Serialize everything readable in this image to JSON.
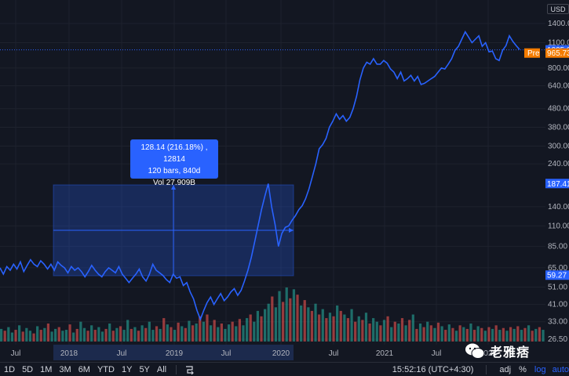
{
  "chart_data": {
    "type": "line",
    "scale": "log",
    "currency": "USD",
    "y_axis_ticks": [
      "1400.00",
      "1100.00",
      "800.00",
      "640.00",
      "480.00",
      "380.00",
      "300.00",
      "240.00",
      "187.41",
      "140.00",
      "110.00",
      "85.00",
      "65.00",
      "59.27",
      "51.00",
      "41.00",
      "33.00",
      "26.50"
    ],
    "y_axis_tick_values": [
      1400,
      1100,
      800,
      640,
      480,
      380,
      300,
      240,
      187.41,
      140,
      110,
      85,
      65,
      59.27,
      51,
      41,
      33,
      26.5
    ],
    "x_axis_labels": [
      "Jul",
      "2018",
      "Jul",
      "2019",
      "Jul",
      "2020",
      "Jul",
      "2021",
      "Jul",
      "2022"
    ],
    "price_tags": [
      {
        "value": 1005.05,
        "label": "1005.05",
        "color": "#2962ff"
      },
      {
        "value": 965.73,
        "label": "965.73",
        "prefix": "Pre",
        "color": "#f57c00"
      },
      {
        "value": 187.41,
        "label": "187.41",
        "color": "#2962ff"
      },
      {
        "value": 59.27,
        "label": "59.27",
        "color": "#2962ff"
      }
    ],
    "series": [
      {
        "color": "#2962ff",
        "values": [
          65,
          60,
          66,
          63,
          68,
          64,
          70,
          62,
          67,
          72,
          68,
          66,
          71,
          68,
          64,
          68,
          63,
          70,
          67,
          65,
          61,
          66,
          63,
          65,
          62,
          58,
          62,
          67,
          63,
          60,
          58,
          62,
          65,
          63,
          61,
          66,
          60,
          57,
          54,
          57,
          60,
          64,
          58,
          55,
          60,
          68,
          63,
          61,
          59,
          56,
          54,
          60,
          57,
          58,
          52,
          54,
          48,
          44,
          38,
          34,
          38,
          42,
          45,
          41,
          44,
          47,
          43,
          45,
          48,
          50,
          46,
          49,
          55,
          63,
          74,
          90,
          110,
          135,
          160,
          187,
          140,
          112,
          85,
          100,
          108,
          110,
          118,
          125,
          135,
          142,
          155,
          175,
          205,
          240,
          290,
          305,
          330,
          380,
          410,
          450,
          420,
          440,
          410,
          430,
          480,
          560,
          690,
          800,
          860,
          840,
          900,
          840,
          840,
          880,
          850,
          790,
          760,
          700,
          760,
          680,
          700,
          730,
          680,
          720,
          650,
          660,
          680,
          700,
          720,
          760,
          800,
          790,
          840,
          900,
          1000,
          1050,
          1150,
          1260,
          1180,
          1100,
          1150,
          1200,
          1050,
          1100,
          980,
          990,
          900,
          880,
          1000,
          1060,
          1200,
          1120,
          1060,
          1010
        ]
      }
    ],
    "volume": {
      "up_color": "#26a69a",
      "down_color": "#ef5350",
      "values": [
        [
          14,
          1
        ],
        [
          12,
          0
        ],
        [
          16,
          1
        ],
        [
          10,
          1
        ],
        [
          13,
          0
        ],
        [
          18,
          1
        ],
        [
          11,
          0
        ],
        [
          15,
          1
        ],
        [
          12,
          1
        ],
        [
          9,
          0
        ],
        [
          17,
          1
        ],
        [
          13,
          0
        ],
        [
          15,
          1
        ],
        [
          20,
          0
        ],
        [
          11,
          1
        ],
        [
          14,
          1
        ],
        [
          16,
          0
        ],
        [
          12,
          1
        ],
        [
          13,
          1
        ],
        [
          19,
          0
        ],
        [
          10,
          1
        ],
        [
          14,
          0
        ],
        [
          22,
          1
        ],
        [
          15,
          1
        ],
        [
          12,
          0
        ],
        [
          18,
          1
        ],
        [
          13,
          0
        ],
        [
          16,
          1
        ],
        [
          11,
          1
        ],
        [
          14,
          0
        ],
        [
          20,
          1
        ],
        [
          12,
          0
        ],
        [
          15,
          1
        ],
        [
          17,
          0
        ],
        [
          13,
          1
        ],
        [
          24,
          1
        ],
        [
          14,
          0
        ],
        [
          16,
          1
        ],
        [
          12,
          0
        ],
        [
          18,
          1
        ],
        [
          15,
          0
        ],
        [
          22,
          1
        ],
        [
          13,
          1
        ],
        [
          17,
          0
        ],
        [
          14,
          1
        ],
        [
          26,
          0
        ],
        [
          19,
          1
        ],
        [
          16,
          0
        ],
        [
          13,
          1
        ],
        [
          21,
          0
        ],
        [
          17,
          1
        ],
        [
          15,
          0
        ],
        [
          23,
          1
        ],
        [
          18,
          0
        ],
        [
          20,
          1
        ],
        [
          28,
          0
        ],
        [
          22,
          1
        ],
        [
          30,
          0
        ],
        [
          18,
          1
        ],
        [
          24,
          0
        ],
        [
          16,
          1
        ],
        [
          20,
          0
        ],
        [
          14,
          1
        ],
        [
          19,
          1
        ],
        [
          22,
          0
        ],
        [
          17,
          1
        ],
        [
          25,
          0
        ],
        [
          18,
          1
        ],
        [
          26,
          1
        ],
        [
          30,
          0
        ],
        [
          22,
          1
        ],
        [
          34,
          1
        ],
        [
          28,
          0
        ],
        [
          36,
          1
        ],
        [
          42,
          1
        ],
        [
          50,
          0
        ],
        [
          38,
          1
        ],
        [
          56,
          1
        ],
        [
          44,
          0
        ],
        [
          60,
          1
        ],
        [
          48,
          0
        ],
        [
          58,
          1
        ],
        [
          52,
          0
        ],
        [
          40,
          1
        ],
        [
          46,
          0
        ],
        [
          38,
          1
        ],
        [
          34,
          0
        ],
        [
          42,
          1
        ],
        [
          30,
          0
        ],
        [
          36,
          1
        ],
        [
          26,
          0
        ],
        [
          32,
          1
        ],
        [
          28,
          0
        ],
        [
          40,
          1
        ],
        [
          34,
          0
        ],
        [
          30,
          1
        ],
        [
          26,
          0
        ],
        [
          36,
          1
        ],
        [
          22,
          0
        ],
        [
          28,
          1
        ],
        [
          24,
          0
        ],
        [
          32,
          1
        ],
        [
          20,
          0
        ],
        [
          26,
          1
        ],
        [
          22,
          1
        ],
        [
          18,
          0
        ],
        [
          24,
          1
        ],
        [
          28,
          0
        ],
        [
          16,
          1
        ],
        [
          22,
          0
        ],
        [
          20,
          1
        ],
        [
          26,
          0
        ],
        [
          18,
          1
        ],
        [
          24,
          0
        ],
        [
          30,
          1
        ],
        [
          14,
          0
        ],
        [
          20,
          1
        ],
        [
          16,
          0
        ],
        [
          22,
          1
        ],
        [
          18,
          0
        ],
        [
          15,
          1
        ],
        [
          21,
          0
        ],
        [
          17,
          1
        ],
        [
          13,
          0
        ],
        [
          19,
          1
        ],
        [
          15,
          0
        ],
        [
          12,
          1
        ],
        [
          18,
          0
        ],
        [
          16,
          1
        ],
        [
          14,
          0
        ],
        [
          20,
          1
        ],
        [
          13,
          0
        ],
        [
          17,
          1
        ],
        [
          15,
          0
        ],
        [
          12,
          1
        ],
        [
          16,
          0
        ],
        [
          14,
          1
        ],
        [
          18,
          0
        ],
        [
          13,
          1
        ],
        [
          15,
          0
        ],
        [
          12,
          1
        ],
        [
          16,
          0
        ],
        [
          14,
          1
        ],
        [
          17,
          0
        ],
        [
          13,
          1
        ],
        [
          15,
          0
        ],
        [
          18,
          1
        ],
        [
          12,
          0
        ],
        [
          14,
          1
        ],
        [
          16,
          0
        ],
        [
          13,
          1
        ]
      ]
    }
  },
  "measure": {
    "line1": "128.14 (216.18%) , 12814",
    "line2": "120 bars, 840d",
    "line3": "Vol 27.909B"
  },
  "toolbar": {
    "ranges": [
      "1D",
      "5D",
      "1M",
      "3M",
      "6M",
      "YTD",
      "1Y",
      "5Y",
      "All"
    ],
    "clock": "15:52:16 (UTC+4:30)",
    "adj": "adj",
    "percent": "%",
    "log": "log",
    "auto": "auto"
  },
  "watermark": {
    "text": "老雅痞"
  },
  "colors": {
    "background": "#131722",
    "line": "#2962ff",
    "measure_fill": "#2962ff",
    "accent": "#2962ff",
    "pre": "#f57c00"
  }
}
